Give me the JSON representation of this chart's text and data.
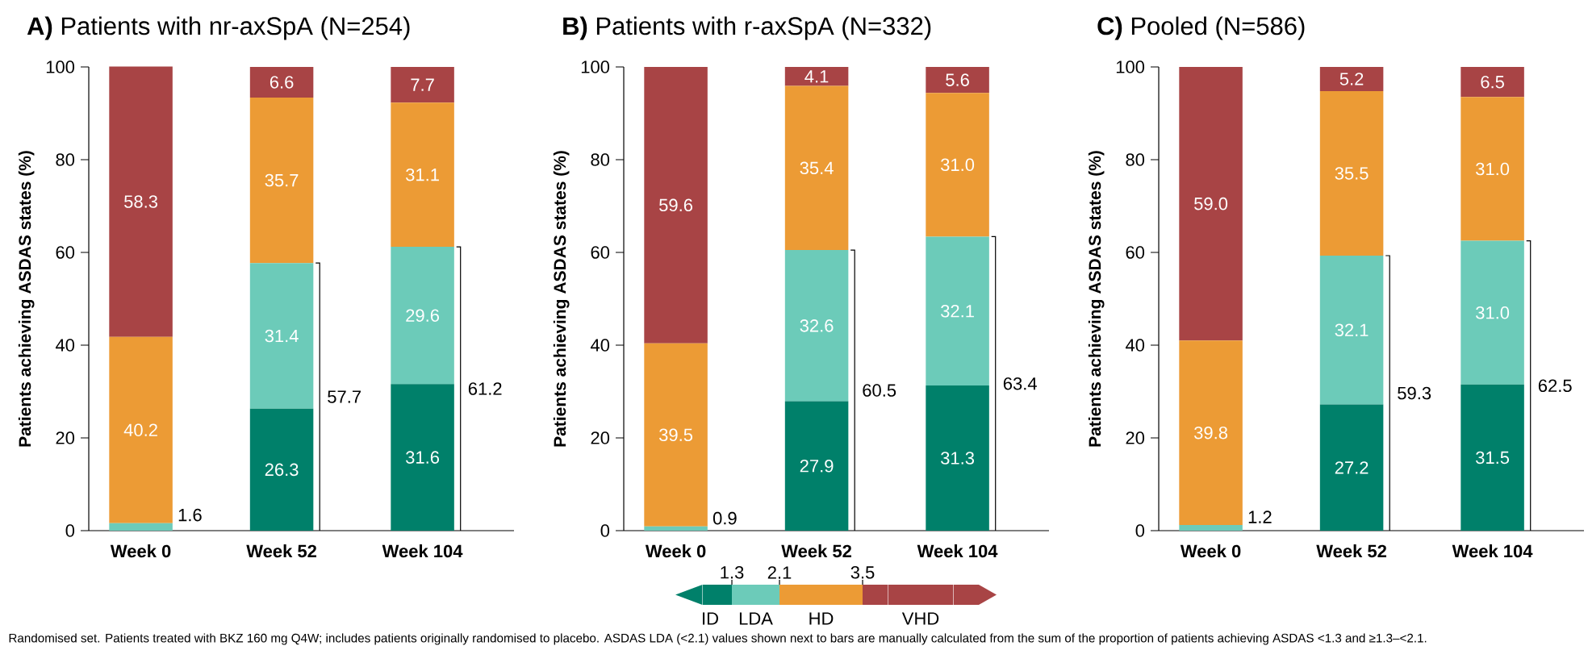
{
  "chart_data": [
    {
      "type": "bar",
      "stacked": true,
      "title": "**A)** Patients with nr-axSpA (N=254)",
      "ylabel": "Patients achieving ASDAS states (%)",
      "categories": [
        "Week 0",
        "Week 52",
        "Week 104"
      ],
      "ylim": [
        0,
        100
      ],
      "yticks": [
        0,
        20,
        40,
        60,
        80,
        100
      ],
      "series": [
        {
          "color": "#00806a",
          "values": [
            0,
            26.3,
            31.6
          ],
          "value_labels": [
            null,
            "26.3",
            "31.6"
          ]
        },
        {
          "color": "#6ccbb9",
          "values": [
            1.6,
            31.4,
            29.6
          ],
          "value_labels": [
            null,
            "31.4",
            "29.6"
          ]
        },
        {
          "color": "#ec9b35",
          "values": [
            40.2,
            35.7,
            31.1
          ],
          "value_labels": [
            "40.2",
            "35.7",
            "31.1"
          ]
        },
        {
          "color": "#a84445",
          "values": [
            58.3,
            6.6,
            7.7
          ],
          "value_labels": [
            "58.3",
            "6.6",
            "7.7"
          ]
        }
      ],
      "annotations": [
        {
          "text": "1.6",
          "x": "Week 0",
          "y": 1.6
        },
        "57.7",
        "61.2",
        "Randomised set. Patients treated with BKZ 160 mg Q4W; includes patients originally randomised to placebo. ASDAS LDA (<2.1) values shown next to bars are manually calculated from the sum of the proportion of patients achieving ASDAS <1.3 and ≥1.3–<2.1."
      ]
    },
    {
      "type": "bar",
      "stacked": true,
      "title": "**B)** Patients with r-axSpA (N=332)",
      "ylabel": "Patients achieving ASDAS states (%)",
      "categories": [
        "Week 0",
        "Week 52",
        "Week 104"
      ],
      "ylim": [
        0,
        100
      ],
      "yticks": [
        0,
        20,
        40,
        60,
        80,
        100
      ],
      "legend": "bottom",
      "series": [
        {
          "name": "ID",
          "color": "#00806a",
          "values": [
            0,
            27.9,
            31.3
          ],
          "value_labels": [
            null,
            "27.9",
            "31.3"
          ]
        },
        {
          "name": "LDA",
          "color": "#6ccbb9",
          "values": [
            0.9,
            32.6,
            32.1
          ],
          "value_labels": [
            null,
            "32.6",
            "32.1"
          ]
        },
        {
          "name": "HD",
          "color": "#ec9b35",
          "values": [
            39.5,
            35.4,
            31.0
          ],
          "value_labels": [
            "39.5",
            "35.4",
            "31.0"
          ]
        },
        {
          "name": "VHD",
          "color": "#a84445",
          "values": [
            59.6,
            4.1,
            5.6
          ],
          "value_labels": [
            "59.6",
            "4.1",
            "5.6"
          ]
        }
      ],
      "annotations": [
        {
          "text": "0.9",
          "x": "Week 0",
          "y": 0.9
        },
        "60.5",
        "63.4",
        "1.3",
        "2.1",
        "3.5"
      ]
    },
    {
      "type": "bar",
      "stacked": true,
      "title": "**C)** Pooled (N=586)",
      "ylabel": "Patients achieving ASDAS states (%)",
      "categories": [
        "Week 0",
        "Week 52",
        "Week 104"
      ],
      "ylim": [
        0,
        100
      ],
      "yticks": [
        0,
        20,
        40,
        60,
        80,
        100
      ],
      "series": [
        {
          "color": "#00806a",
          "values": [
            0,
            27.2,
            31.5
          ],
          "value_labels": [
            null,
            "27.2",
            "31.5"
          ]
        },
        {
          "color": "#6ccbb9",
          "values": [
            1.2,
            32.1,
            31.0
          ],
          "value_labels": [
            null,
            "32.1",
            "31.0"
          ]
        },
        {
          "color": "#ec9b35",
          "values": [
            39.8,
            35.5,
            31.0
          ],
          "value_labels": [
            "39.8",
            "35.5",
            "31.0"
          ]
        },
        {
          "color": "#a84445",
          "values": [
            59.0,
            5.2,
            6.5
          ],
          "value_labels": [
            "59.0",
            "5.2",
            "6.5"
          ]
        }
      ],
      "annotations": [
        {
          "text": "1.2",
          "x": "Week 0",
          "y": 1.2
        },
        "59.3",
        "62.5"
      ]
    }
  ]
}
